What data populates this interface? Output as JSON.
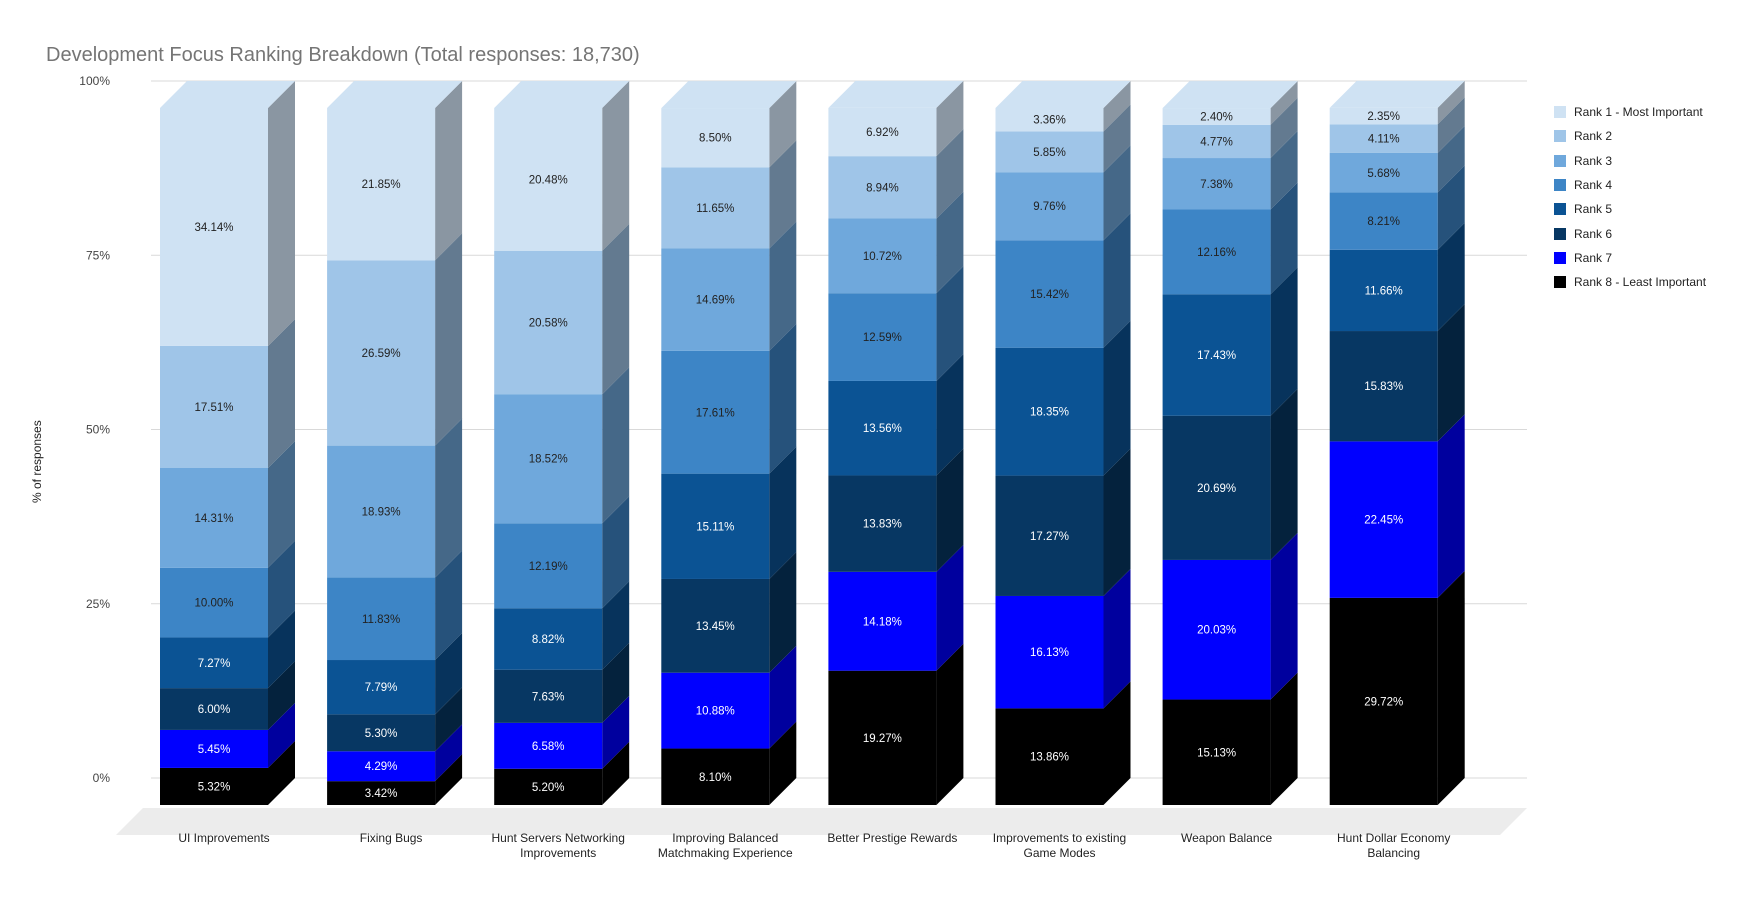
{
  "chart_data": {
    "type": "bar",
    "stacked": true,
    "three_d": true,
    "title": "Development Focus Ranking Breakdown (Total responses: 18,730)",
    "xlabel": "",
    "ylabel": "% of responses",
    "ylim": [
      0,
      100
    ],
    "y_ticks": [
      "0%",
      "25%",
      "50%",
      "75%",
      "100%"
    ],
    "grid": true,
    "legend_position": "right",
    "categories": [
      "UI Improvements",
      "Fixing Bugs",
      "Hunt Servers Networking Improvements",
      "Improving Balanced Matchmaking Experience",
      "Better Prestige Rewards",
      "Improvements to existing Game Modes",
      "Weapon Balance",
      "Hunt Dollar Economy Balancing"
    ],
    "category_label_lines": [
      [
        "UI Improvements"
      ],
      [
        "Fixing Bugs"
      ],
      [
        "Hunt Servers Networking",
        "Improvements"
      ],
      [
        "Improving Balanced",
        "Matchmaking Experience"
      ],
      [
        "Better Prestige Rewards"
      ],
      [
        "Improvements to existing",
        "Game Modes"
      ],
      [
        "Weapon Balance"
      ],
      [
        "Hunt Dollar Economy",
        "Balancing"
      ]
    ],
    "series": [
      {
        "name": "Rank 1 - Most Important",
        "color": "#cfe2f3",
        "values": [
          34.14,
          21.85,
          20.48,
          8.5,
          6.92,
          3.36,
          2.4,
          2.35
        ]
      },
      {
        "name": "Rank 2",
        "color": "#9fc5e8",
        "values": [
          17.51,
          26.59,
          20.58,
          11.65,
          8.94,
          5.85,
          4.77,
          4.11
        ]
      },
      {
        "name": "Rank 3",
        "color": "#6fa8dc",
        "values": [
          14.31,
          18.93,
          18.52,
          14.69,
          10.72,
          9.76,
          7.38,
          5.68
        ]
      },
      {
        "name": "Rank 4",
        "color": "#3d85c6",
        "values": [
          10.0,
          11.83,
          12.19,
          17.61,
          12.59,
          15.42,
          12.16,
          8.21
        ]
      },
      {
        "name": "Rank 5",
        "color": "#0b5394",
        "values": [
          7.27,
          7.79,
          8.82,
          15.11,
          13.56,
          18.35,
          17.43,
          11.66
        ]
      },
      {
        "name": "Rank 6",
        "color": "#073763",
        "values": [
          6.0,
          5.3,
          7.63,
          13.45,
          13.83,
          17.27,
          20.69,
          15.83
        ]
      },
      {
        "name": "Rank 7",
        "color": "#0000ff",
        "values": [
          5.45,
          4.29,
          6.58,
          10.88,
          14.18,
          16.13,
          20.03,
          22.45
        ]
      },
      {
        "name": "Rank 8 - Least Important",
        "color": "#000000",
        "values": [
          5.32,
          3.42,
          5.2,
          8.1,
          19.27,
          13.86,
          15.13,
          29.72
        ]
      }
    ],
    "data_labels": [
      [
        "34.14%",
        "21.85%",
        "20.48%",
        "8.50%",
        "6.92%",
        "3.36%",
        "2.40%",
        "2.35%"
      ],
      [
        "17.51%",
        "26.59%",
        "20.58%",
        "11.65%",
        "8.94%",
        "5.85%",
        "4.77%",
        "4.11%"
      ],
      [
        "14.31%",
        "18.93%",
        "18.52%",
        "14.69%",
        "10.72%",
        "9.76%",
        "7.38%",
        "5.68%"
      ],
      [
        "10.00%",
        "11.83%",
        "12.19%",
        "17.61%",
        "12.59%",
        "15.42%",
        "12.16%",
        "8.21%"
      ],
      [
        "7.27%",
        "7.79%",
        "8.82%",
        "15.11%",
        "13.56%",
        "18.35%",
        "17.43%",
        "11.66%"
      ],
      [
        "6.00%",
        "5.30%",
        "7.63%",
        "13.45%",
        "13.83%",
        "17.27%",
        "20.69%",
        "15.83%"
      ],
      [
        "5.45%",
        "4.29%",
        "6.58%",
        "10.88%",
        "14.18%",
        "16.13%",
        "20.03%",
        "22.45%"
      ],
      [
        "5.32%",
        "3.42%",
        "5.20%",
        "8.10%",
        "19.27%",
        "13.86%",
        "15.13%",
        "29.72%"
      ]
    ]
  }
}
